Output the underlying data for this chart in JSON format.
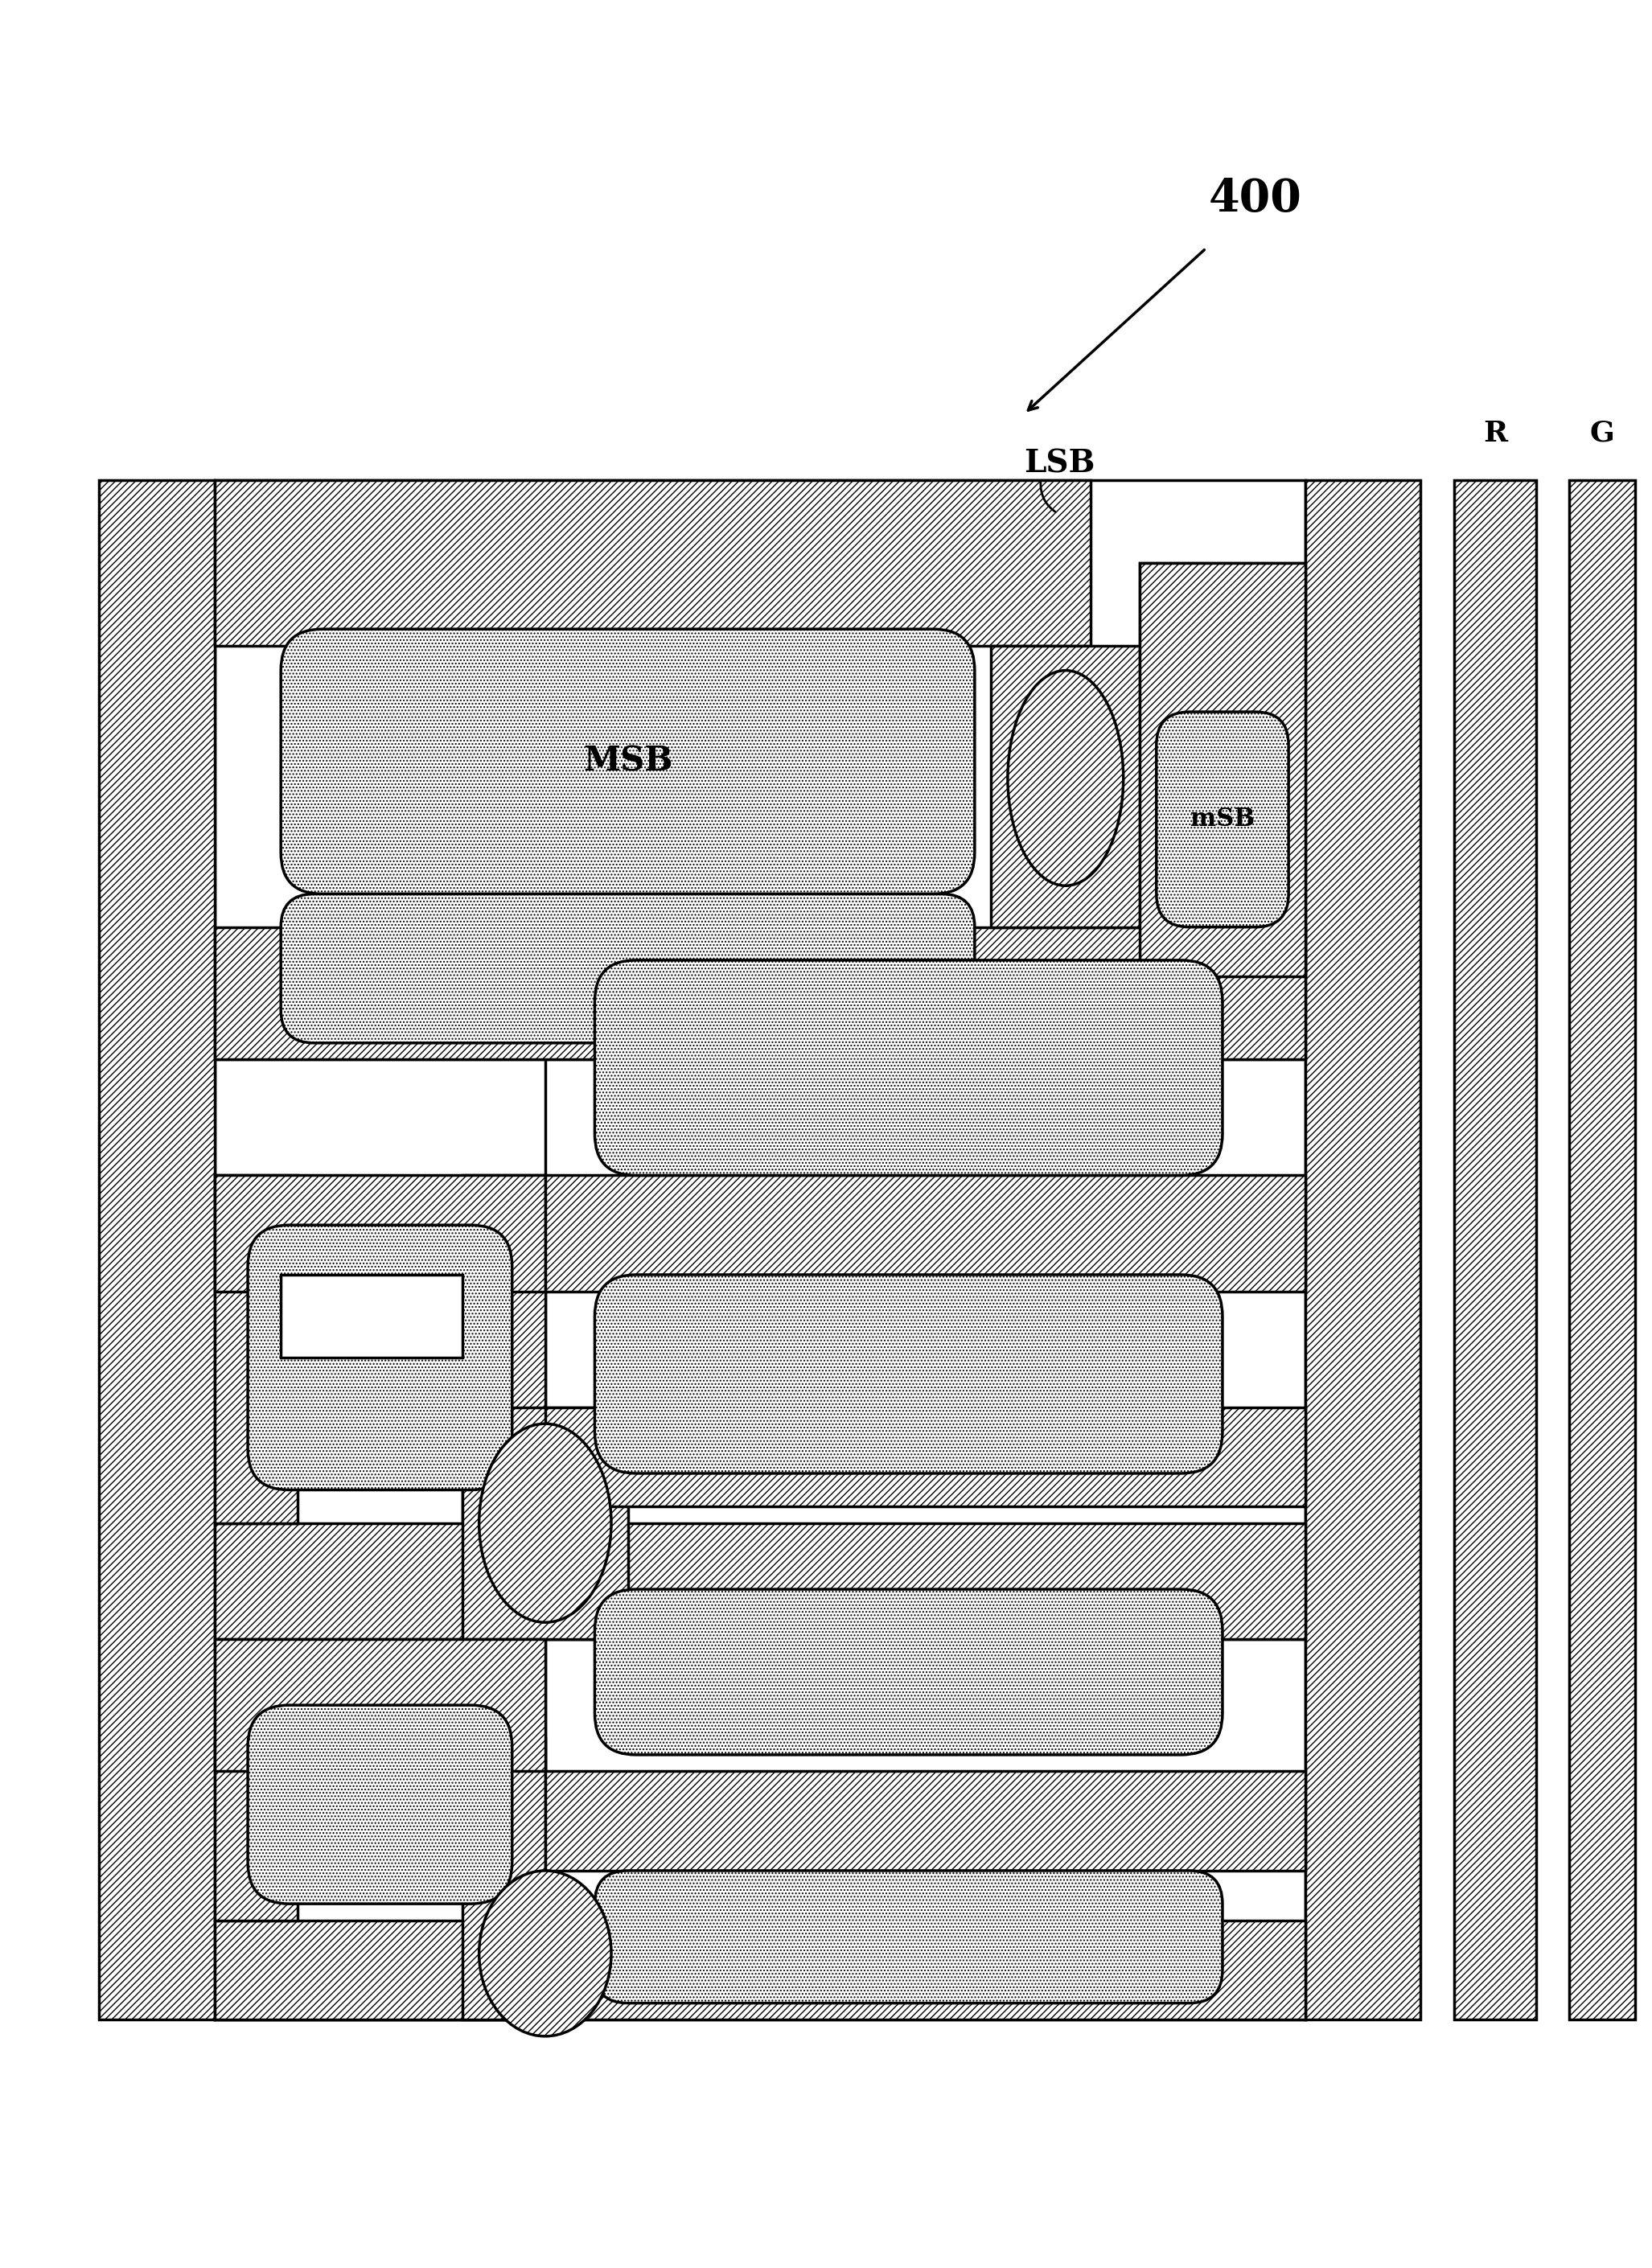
{
  "bg": "#ffffff",
  "lw": 2.5,
  "label_400": "400",
  "label_lsb": "LSB",
  "label_msb": "MSB",
  "label_msb_small": "mSB",
  "label_R": "R",
  "label_G": "G",
  "fs_400": 40,
  "fs_lsb": 28,
  "fs_msb": 30,
  "fs_msb_small": 22,
  "fs_RG": 26
}
